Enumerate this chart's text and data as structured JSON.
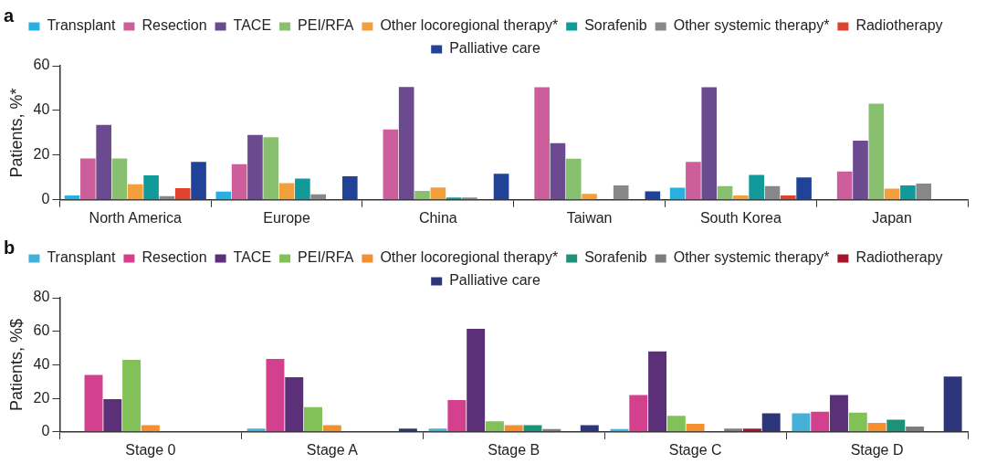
{
  "chart_data": [
    {
      "type": "bar",
      "title": "a",
      "ylabel": "Patients, %*",
      "categories": [
        "North America",
        "Europe",
        "China",
        "Taiwan",
        "South Korea",
        "Japan"
      ],
      "ylim": [
        0,
        60
      ],
      "yticks": [
        0,
        20,
        40,
        60
      ],
      "grid": false,
      "legend": "top",
      "series": [
        {
          "name": "Transplant",
          "color": "#29b0e3",
          "values": [
            2,
            3.7,
            null,
            null,
            5.4,
            null
          ]
        },
        {
          "name": "Resection",
          "color": "#cc5e9c",
          "values": [
            18.5,
            16,
            31.5,
            50.4,
            17,
            12.7
          ]
        },
        {
          "name": "TACE",
          "color": "#6b4a8f",
          "values": [
            33.5,
            29,
            50.5,
            25.4,
            50.4,
            26.5
          ]
        },
        {
          "name": "PEI/RFA",
          "color": "#88c06f",
          "values": [
            18.5,
            28,
            4,
            18.4,
            6.2,
            43
          ]
        },
        {
          "name": "Other locoregional therapy*",
          "color": "#f3a03c",
          "values": [
            7,
            7.5,
            5.5,
            2.7,
            2,
            5
          ]
        },
        {
          "name": "Sorafenib",
          "color": "#12999a",
          "values": [
            11,
            9.5,
            1,
            null,
            11.2,
            6.5
          ]
        },
        {
          "name": "Other systemic therapy*",
          "color": "#878889",
          "values": [
            1.7,
            2.5,
            1,
            6.5,
            6.2,
            7.3
          ]
        },
        {
          "name": "Radiotherapy",
          "color": "#df432d",
          "values": [
            5.2,
            null,
            null,
            null,
            2,
            null
          ]
        },
        {
          "name": "Palliative care",
          "color": "#214397",
          "values": [
            17,
            10.5,
            11.7,
            3.8,
            10,
            null
          ]
        }
      ]
    },
    {
      "type": "bar",
      "title": "b",
      "ylabel": "Patients, %$",
      "categories": [
        "Stage 0",
        "Stage A",
        "Stage B",
        "Stage C",
        "Stage D"
      ],
      "ylim": [
        0,
        80
      ],
      "yticks": [
        0,
        20,
        40,
        60,
        80
      ],
      "grid": false,
      "legend": "top",
      "series": [
        {
          "name": "Transplant",
          "color": "#46b1d6",
          "values": [
            null,
            2,
            2,
            1.7,
            11
          ]
        },
        {
          "name": "Resection",
          "color": "#d3408d",
          "values": [
            34,
            43.5,
            19,
            22,
            12
          ]
        },
        {
          "name": "TACE",
          "color": "#5b3079",
          "values": [
            19.5,
            32.6,
            61.5,
            48,
            22
          ]
        },
        {
          "name": "PEI/RFA",
          "color": "#82c157",
          "values": [
            43,
            14.7,
            6.3,
            9.5,
            11.5
          ]
        },
        {
          "name": "Other locoregional therapy*",
          "color": "#f28f30",
          "values": [
            4,
            4,
            4,
            4.8,
            5.3
          ]
        },
        {
          "name": "Sorafenib",
          "color": "#1f9179",
          "values": [
            null,
            null,
            4,
            null,
            7.3
          ]
        },
        {
          "name": "Other systemic therapy*",
          "color": "#807c7b",
          "values": [
            null,
            null,
            1.7,
            2,
            3.2
          ]
        },
        {
          "name": "Radiotherapy",
          "color": "#a4142a",
          "values": [
            null,
            null,
            null,
            2,
            null
          ]
        },
        {
          "name": "Palliative care",
          "color": "#2e367b",
          "values": [
            null,
            2,
            4,
            11,
            33
          ]
        }
      ]
    }
  ]
}
